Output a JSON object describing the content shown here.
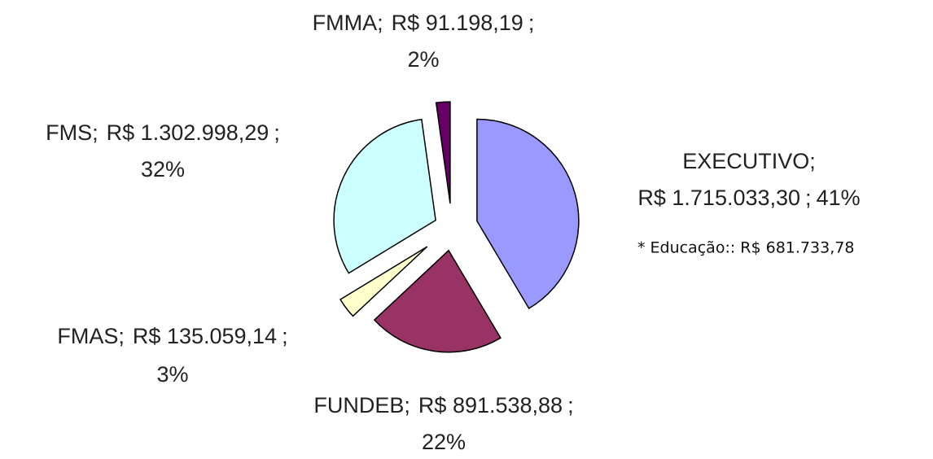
{
  "chart_data": {
    "type": "pie",
    "categories": [
      "EXECUTIVO",
      "FUNDEB",
      "FMAS",
      "FMS",
      "FMMA"
    ],
    "values": [
      1715033.3,
      891538.88,
      135059.14,
      1302998.29,
      91198.19
    ],
    "value_labels": [
      "R$ 1.715.033,30",
      "R$ 891.538,88",
      "R$ 135.059,14",
      "R$ 1.302.998,29",
      "R$ 91.198,19"
    ],
    "percentages": [
      41,
      22,
      3,
      32,
      2
    ],
    "percentage_labels": [
      "41%",
      "22%",
      "3%",
      "32%",
      "2%"
    ],
    "separator": ";",
    "colors": [
      "#9999ff",
      "#993366",
      "#ffffcc",
      "#ccffff",
      "#660066"
    ],
    "annotation": "* Educação:: R$ 681.733,78"
  }
}
